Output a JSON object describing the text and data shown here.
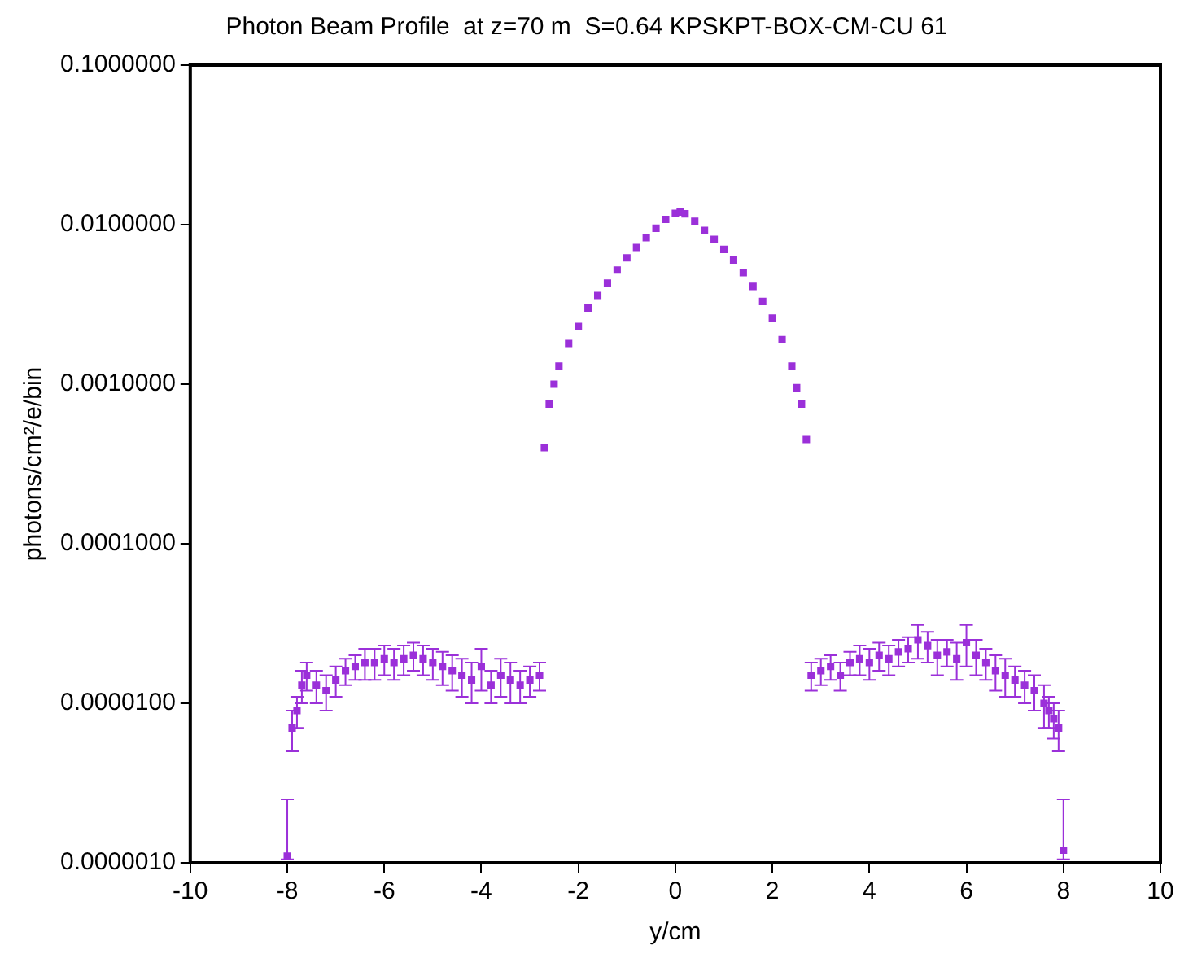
{
  "chart_data": {
    "type": "scatter",
    "title": "Photon Beam Profile  at z=70 m  S=0.64 KPSKPT-BOX-CM-CU 61",
    "xlabel": "y/cm",
    "ylabel": "photons/cm²/e/bin",
    "x": [
      -8,
      -7.9,
      -7.8,
      -7.7,
      -7.6,
      -7.4,
      -7.2,
      -7.0,
      -6.8,
      -6.6,
      -6.4,
      -6.2,
      -6.0,
      -5.8,
      -5.6,
      -5.4,
      -5.2,
      -5.0,
      -4.8,
      -4.6,
      -4.4,
      -4.2,
      -4.0,
      -3.8,
      -3.6,
      -3.4,
      -3.2,
      -3.0,
      -2.8,
      -2.7,
      -2.6,
      -2.5,
      -2.4,
      -2.2,
      -2.0,
      -1.8,
      -1.6,
      -1.4,
      -1.2,
      -1.0,
      -0.8,
      -0.6,
      -0.4,
      -0.2,
      0.0,
      0.1,
      0.2,
      0.4,
      0.6,
      0.8,
      1.0,
      1.2,
      1.4,
      1.6,
      1.8,
      2.0,
      2.2,
      2.4,
      2.5,
      2.6,
      2.7,
      2.8,
      3.0,
      3.2,
      3.4,
      3.6,
      3.8,
      4.0,
      4.2,
      4.4,
      4.6,
      4.8,
      5.0,
      5.2,
      5.4,
      5.6,
      5.8,
      6.0,
      6.2,
      6.4,
      6.6,
      6.8,
      7.0,
      7.2,
      7.4,
      7.6,
      7.7,
      7.8,
      7.9,
      8.0
    ],
    "values": [
      1.1e-06,
      7e-06,
      9e-06,
      1.3e-05,
      1.5e-05,
      1.3e-05,
      1.2e-05,
      1.4e-05,
      1.6e-05,
      1.7e-05,
      1.8e-05,
      1.8e-05,
      1.9e-05,
      1.8e-05,
      1.9e-05,
      2e-05,
      1.9e-05,
      1.8e-05,
      1.7e-05,
      1.6e-05,
      1.5e-05,
      1.4e-05,
      1.7e-05,
      1.3e-05,
      1.5e-05,
      1.4e-05,
      1.3e-05,
      1.4e-05,
      1.5e-05,
      0.0004,
      0.00075,
      0.001,
      0.0013,
      0.0018,
      0.0023,
      0.003,
      0.0036,
      0.0043,
      0.0052,
      0.0062,
      0.0072,
      0.0083,
      0.0095,
      0.0108,
      0.0118,
      0.012,
      0.0117,
      0.0105,
      0.0092,
      0.0081,
      0.007,
      0.006,
      0.005,
      0.0041,
      0.0033,
      0.0026,
      0.0019,
      0.0013,
      0.00095,
      0.00075,
      0.00045,
      1.5e-05,
      1.6e-05,
      1.7e-05,
      1.5e-05,
      1.8e-05,
      1.9e-05,
      1.8e-05,
      2e-05,
      1.9e-05,
      2.1e-05,
      2.2e-05,
      2.5e-05,
      2.3e-05,
      2e-05,
      2.1e-05,
      1.9e-05,
      2.4e-05,
      2e-05,
      1.8e-05,
      1.6e-05,
      1.5e-05,
      1.4e-05,
      1.3e-05,
      1.2e-05,
      1e-05,
      9e-06,
      8e-06,
      7e-06,
      1.2e-06
    ],
    "errors": [
      [
        1.05e-06,
        2.5e-06
      ],
      2e-06,
      2e-06,
      3e-06,
      3e-06,
      3e-06,
      3e-06,
      3e-06,
      3e-06,
      3e-06,
      4e-06,
      4e-06,
      4e-06,
      4e-06,
      4e-06,
      4e-06,
      4e-06,
      4e-06,
      4e-06,
      4e-06,
      4e-06,
      4e-06,
      5e-06,
      3e-06,
      4e-06,
      4e-06,
      3e-06,
      3e-06,
      3e-06,
      null,
      null,
      null,
      null,
      null,
      null,
      null,
      null,
      null,
      null,
      null,
      null,
      null,
      null,
      null,
      null,
      null,
      null,
      null,
      null,
      null,
      null,
      null,
      null,
      null,
      null,
      null,
      null,
      null,
      null,
      null,
      null,
      3e-06,
      3e-06,
      3e-06,
      3e-06,
      3e-06,
      4e-06,
      4e-06,
      4e-06,
      4e-06,
      4e-06,
      4e-06,
      6e-06,
      5e-06,
      5e-06,
      4e-06,
      5e-06,
      7e-06,
      5e-06,
      4e-06,
      4e-06,
      4e-06,
      3e-06,
      3e-06,
      3e-06,
      3e-06,
      2e-06,
      2e-06,
      2e-06,
      [
        1.05e-06,
        2.5e-06
      ]
    ],
    "color": "#9b30d9",
    "marker": "square",
    "xlim": [
      -10,
      10
    ],
    "xticks": [
      -10,
      -8,
      -6,
      -4,
      -2,
      0,
      2,
      4,
      6,
      8,
      10
    ],
    "ylim": [
      1e-06,
      0.1
    ],
    "log": "y",
    "yticks": [
      {
        "value": 1e-06,
        "label": "0.0000010"
      },
      {
        "value": 1e-05,
        "label": "0.0000100"
      },
      {
        "value": 0.0001,
        "label": "0.0001000"
      },
      {
        "value": 0.001,
        "label": "0.0010000"
      },
      {
        "value": 0.01,
        "label": "0.0100000"
      },
      {
        "value": 0.1,
        "label": "0.1000000"
      }
    ],
    "grid": false,
    "legend": false
  }
}
